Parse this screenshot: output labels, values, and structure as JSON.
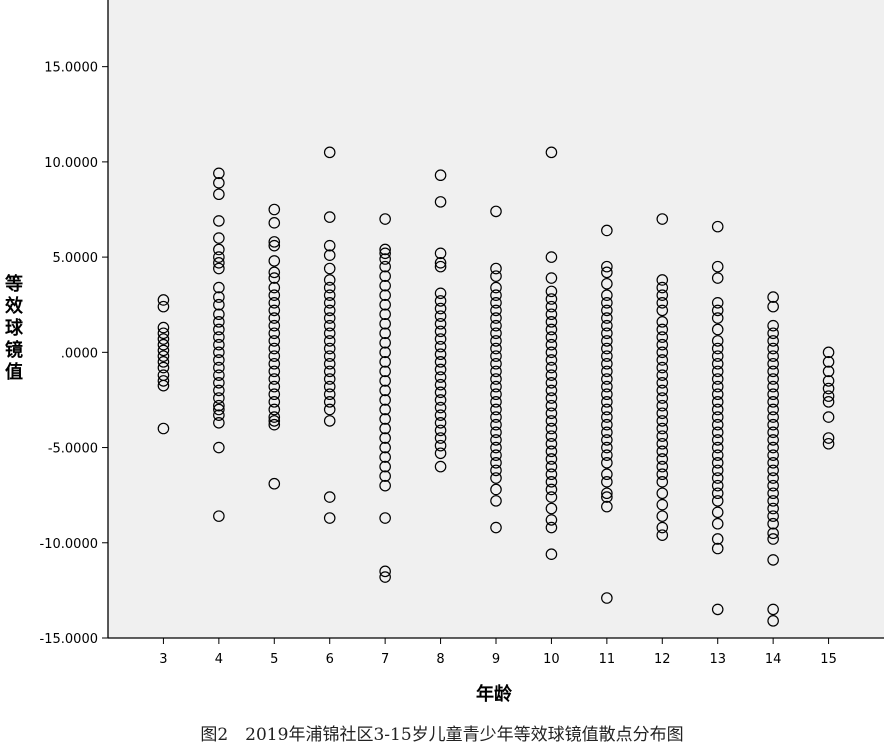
{
  "caption": "图2　2019年浦锦社区3-15岁儿童青少年等效球镜值散点分布图",
  "chart_data": {
    "type": "scatter",
    "title": "",
    "xlabel": "年龄",
    "ylabel": "等效球镜值",
    "xlim": [
      2,
      16
    ],
    "ylim": [
      -15,
      18.5
    ],
    "x_ticks": [
      3,
      4,
      5,
      6,
      7,
      8,
      9,
      10,
      11,
      12,
      13,
      14,
      15
    ],
    "y_ticks": [
      15,
      10,
      5,
      0,
      -5,
      -10,
      -15
    ],
    "y_tick_labels": [
      "15.0000",
      "10.0000",
      "5.0000",
      ".0000",
      "-5.0000",
      "-10.0000",
      "-15.0000"
    ],
    "grid": false,
    "colors": {
      "plot_background": "#f0f0f0",
      "marker_stroke": "#000000",
      "axis": "#000000"
    },
    "marker": "hollow-circle",
    "points": {
      "3": [
        2.75,
        2.4,
        1.3,
        1.0,
        0.7,
        0.4,
        0.1,
        -0.2,
        -0.5,
        -0.8,
        -1.2,
        -1.5,
        -1.75,
        -4.0
      ],
      "4": [
        9.4,
        8.9,
        8.3,
        6.9,
        6.0,
        5.4,
        5.0,
        4.7,
        4.4,
        3.4,
        2.9,
        2.5,
        2.0,
        1.6,
        1.2,
        0.8,
        0.4,
        0.0,
        -0.4,
        -0.8,
        -1.2,
        -1.6,
        -2.0,
        -2.4,
        -2.8,
        -3.0,
        -3.3,
        -3.7,
        -5.0,
        -8.6
      ],
      "5": [
        7.5,
        6.8,
        5.8,
        5.6,
        4.8,
        4.2,
        3.9,
        3.4,
        3.0,
        2.6,
        2.2,
        1.8,
        1.4,
        1.0,
        0.6,
        0.2,
        -0.2,
        -0.6,
        -1.0,
        -1.4,
        -1.8,
        -2.2,
        -2.6,
        -3.0,
        -3.4,
        -3.6,
        -3.8,
        -6.9
      ],
      "6": [
        10.5,
        7.1,
        5.6,
        5.1,
        4.4,
        3.8,
        3.4,
        3.0,
        2.6,
        2.2,
        1.8,
        1.4,
        1.0,
        0.6,
        0.2,
        -0.2,
        -0.6,
        -1.0,
        -1.4,
        -1.8,
        -2.2,
        -2.6,
        -3.0,
        -3.6,
        -7.6,
        -8.7
      ],
      "7": [
        7.0,
        5.4,
        5.2,
        4.9,
        4.5,
        4.0,
        3.5,
        3.0,
        2.5,
        2.0,
        1.5,
        1.0,
        0.5,
        0.0,
        -0.5,
        -1.0,
        -1.5,
        -2.0,
        -2.5,
        -3.0,
        -3.5,
        -4.0,
        -4.5,
        -5.0,
        -5.5,
        -6.0,
        -6.5,
        -7.0,
        -8.7,
        -11.5,
        -11.8
      ],
      "8": [
        9.3,
        7.9,
        5.2,
        4.7,
        4.5,
        3.1,
        2.7,
        2.3,
        1.9,
        1.5,
        1.1,
        0.7,
        0.3,
        -0.1,
        -0.5,
        -0.9,
        -1.3,
        -1.7,
        -2.1,
        -2.5,
        -2.9,
        -3.3,
        -3.7,
        -4.1,
        -4.5,
        -4.9,
        -5.3,
        -6.0
      ],
      "9": [
        7.4,
        4.4,
        4.0,
        3.4,
        3.0,
        2.6,
        2.2,
        1.8,
        1.4,
        1.0,
        0.6,
        0.2,
        -0.2,
        -0.6,
        -1.0,
        -1.4,
        -1.8,
        -2.2,
        -2.6,
        -3.0,
        -3.4,
        -3.8,
        -4.2,
        -4.6,
        -5.0,
        -5.4,
        -5.8,
        -6.2,
        -6.6,
        -7.2,
        -7.8,
        -9.2
      ],
      "10": [
        10.5,
        5.0,
        3.9,
        3.2,
        2.8,
        2.4,
        2.0,
        1.6,
        1.2,
        0.8,
        0.4,
        0.0,
        -0.4,
        -0.8,
        -1.2,
        -1.6,
        -2.0,
        -2.4,
        -2.8,
        -3.2,
        -3.6,
        -4.0,
        -4.4,
        -4.8,
        -5.2,
        -5.6,
        -6.0,
        -6.4,
        -6.8,
        -7.2,
        -7.6,
        -8.2,
        -8.8,
        -9.2,
        -10.6
      ],
      "11": [
        6.4,
        4.5,
        4.2,
        3.6,
        3.0,
        2.6,
        2.2,
        1.8,
        1.4,
        1.0,
        0.6,
        0.2,
        -0.2,
        -0.6,
        -1.0,
        -1.4,
        -1.8,
        -2.2,
        -2.6,
        -3.0,
        -3.4,
        -3.8,
        -4.2,
        -4.6,
        -5.0,
        -5.4,
        -5.8,
        -6.4,
        -6.8,
        -7.4,
        -7.6,
        -8.1,
        -12.9
      ],
      "12": [
        7.0,
        3.8,
        3.4,
        3.0,
        2.6,
        2.2,
        1.6,
        1.2,
        0.8,
        0.4,
        0.0,
        -0.4,
        -0.8,
        -1.2,
        -1.6,
        -2.0,
        -2.4,
        -2.8,
        -3.2,
        -3.6,
        -4.0,
        -4.4,
        -4.8,
        -5.2,
        -5.6,
        -6.0,
        -6.4,
        -6.8,
        -7.4,
        -8.0,
        -8.6,
        -9.2,
        -9.6
      ],
      "13": [
        6.6,
        4.5,
        3.9,
        2.6,
        2.2,
        1.8,
        1.2,
        0.6,
        0.2,
        -0.2,
        -0.6,
        -1.0,
        -1.4,
        -1.8,
        -2.2,
        -2.6,
        -3.0,
        -3.4,
        -3.8,
        -4.2,
        -4.6,
        -5.0,
        -5.4,
        -5.8,
        -6.2,
        -6.6,
        -7.0,
        -7.4,
        -7.8,
        -8.4,
        -9.0,
        -9.8,
        -10.3,
        -13.5
      ],
      "14": [
        2.9,
        2.4,
        1.4,
        1.0,
        0.6,
        0.2,
        -0.2,
        -0.6,
        -1.0,
        -1.4,
        -1.8,
        -2.2,
        -2.6,
        -3.0,
        -3.4,
        -3.8,
        -4.2,
        -4.6,
        -5.0,
        -5.4,
        -5.8,
        -6.2,
        -6.6,
        -7.0,
        -7.4,
        -7.8,
        -8.2,
        -8.6,
        -9.0,
        -9.5,
        -9.8,
        -10.9,
        -13.5,
        -14.1
      ],
      "15": [
        0.0,
        -0.5,
        -1.0,
        -1.5,
        -1.9,
        -2.3,
        -2.6,
        -3.4,
        -4.5,
        -4.8
      ]
    }
  }
}
